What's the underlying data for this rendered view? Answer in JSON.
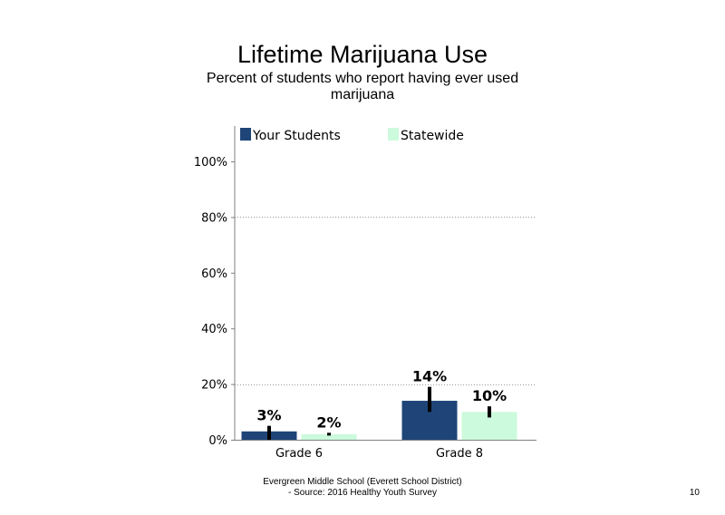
{
  "page_number": "10",
  "footer": {
    "line1": "Evergreen Middle School (Everett School District)",
    "line2": "- Source: 2016 Healthy  Youth Survey"
  },
  "colors": {
    "your_students": "#1f4578",
    "statewide": "#ccfadc",
    "error_bar": "#000000",
    "grid": "#999999"
  },
  "chart_data": {
    "type": "bar",
    "title": "Lifetime Marijuana Use",
    "subtitle": "Percent of students  who report having ever used marijuana",
    "categories": [
      "Grade 6",
      "Grade 8"
    ],
    "series": [
      {
        "name": "Your Students",
        "values": [
          3,
          14
        ],
        "labels": [
          "3%",
          "14%"
        ],
        "error_low": [
          0,
          10
        ],
        "error_high": [
          5,
          19
        ]
      },
      {
        "name": "Statewide",
        "values": [
          2,
          10
        ],
        "labels": [
          "2%",
          "10%"
        ],
        "error_low": [
          1.5,
          8
        ],
        "error_high": [
          2.5,
          12
        ]
      }
    ],
    "ylim": [
      0,
      100
    ],
    "yticks": [
      0,
      20,
      40,
      60,
      80,
      100
    ],
    "ytick_labels": [
      "0%",
      "20%",
      "40%",
      "60%",
      "80%",
      "100%"
    ],
    "gridlines": [
      20,
      80
    ],
    "legend_position": "top"
  }
}
